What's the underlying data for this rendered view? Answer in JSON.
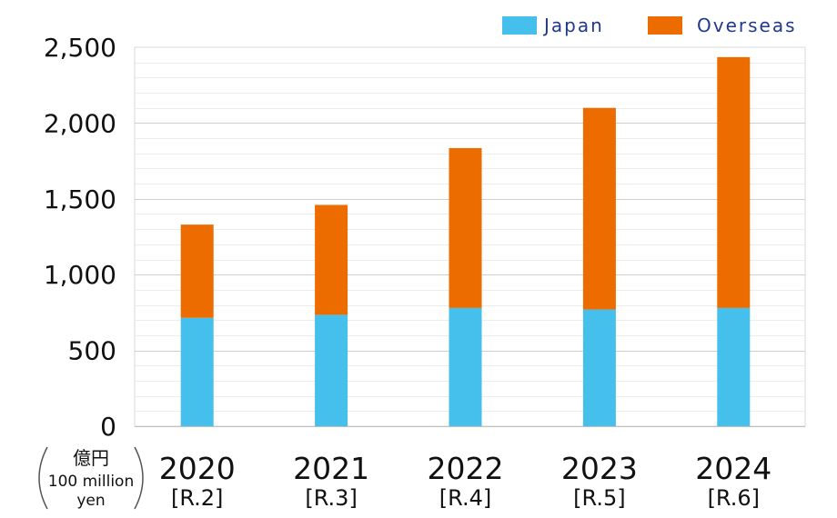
{
  "chart_data": {
    "type": "bar",
    "stacked": true,
    "categories": [
      "2020",
      "2021",
      "2022",
      "2023",
      "2024"
    ],
    "category_sublabels": [
      "[R.2]",
      "[R.3]",
      "[R.4]",
      "[R.5]",
      "[R.6]"
    ],
    "series": [
      {
        "name": "Japan",
        "color": "#45bfec",
        "values": [
          715,
          735,
          780,
          770,
          780
        ]
      },
      {
        "name": "Overseas",
        "color": "#ec6c00",
        "values": [
          615,
          725,
          1055,
          1330,
          1655
        ]
      }
    ],
    "title": "",
    "xlabel": "",
    "ylabel": "",
    "unit_label_jp": "億円",
    "unit_label_en_line1": "100 million",
    "unit_label_en_line2": "yen",
    "ylim": [
      0,
      2500
    ],
    "yticks": [
      0,
      500,
      1000,
      1500,
      2000,
      2500
    ],
    "ytick_labels": [
      "0",
      "500",
      "1,000",
      "1,500",
      "2,000",
      "2,500"
    ],
    "minor_grid_step": 100,
    "grid": true,
    "legend_position": "top-right"
  }
}
